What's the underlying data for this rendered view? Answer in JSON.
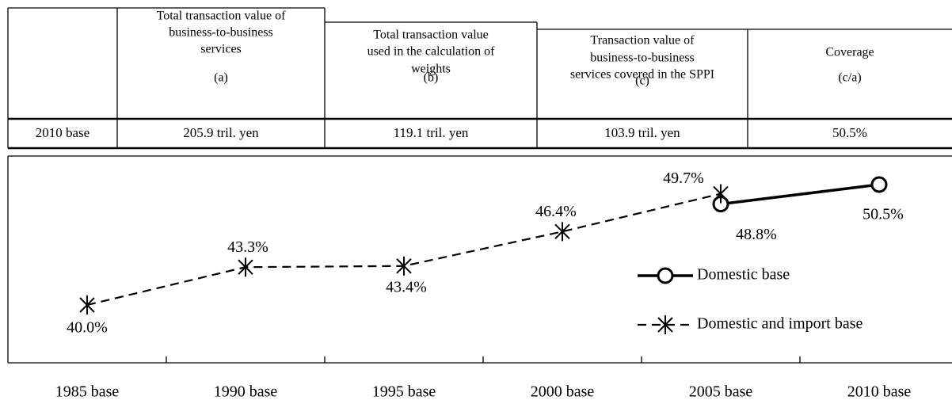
{
  "table": {
    "columns": [
      {
        "lines": [
          "Total transaction value of",
          "business-to-business",
          "services"
        ],
        "sub": "(a)"
      },
      {
        "lines": [
          "Total transaction value",
          "used in the calculation of",
          "weights"
        ],
        "sub": "(b)"
      },
      {
        "lines": [
          "Transaction value of",
          "business-to-business",
          "services covered in the SPPI"
        ],
        "sub": "(c)"
      },
      {
        "lines": [
          "Coverage"
        ],
        "sub": "(c/a)"
      }
    ],
    "rows": [
      [
        "2010 base",
        "205.9 tril. yen",
        "119.1 tril. yen",
        "103.9 tril. yen",
        "50.5%"
      ]
    ]
  },
  "chart_data": {
    "type": "line",
    "categories": [
      "1985 base",
      "1990 base",
      "1995 base",
      "2000 base",
      "2005 base",
      "2010 base"
    ],
    "series": [
      {
        "name": "Domestic base",
        "color": "#000000",
        "marker": "circle",
        "dashed": false,
        "values": [
          null,
          null,
          null,
          null,
          48.8,
          50.5
        ],
        "value_labels": [
          null,
          null,
          null,
          null,
          "48.8%",
          "50.5%"
        ]
      },
      {
        "name": "Domestic and import base",
        "color": "#000000",
        "marker": "star",
        "dashed": true,
        "values": [
          40.0,
          43.3,
          43.4,
          46.4,
          49.7,
          null
        ],
        "value_labels": [
          "40.0%",
          "43.3%",
          "43.4%",
          "46.4%",
          "49.7%",
          null
        ]
      }
    ]
  }
}
